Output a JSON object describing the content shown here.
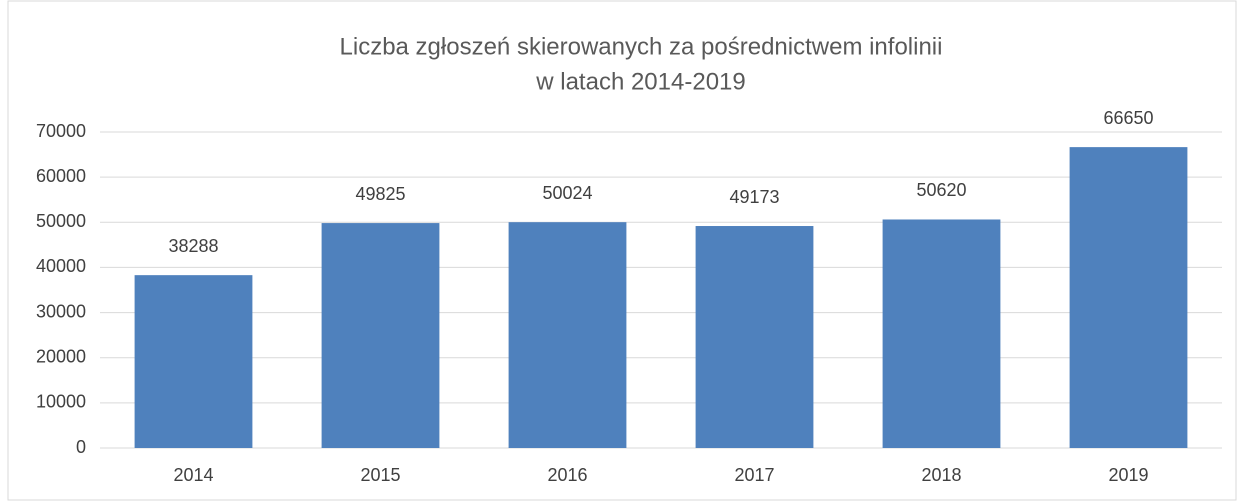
{
  "chart_data": {
    "type": "bar",
    "title": [
      "Liczba zgłoszeń skierowanych za pośrednictwem infolinii",
      "w latach 2014-2019"
    ],
    "categories": [
      "2014",
      "2015",
      "2016",
      "2017",
      "2018",
      "2019"
    ],
    "values": [
      38288,
      49825,
      50024,
      49173,
      50620,
      66650
    ],
    "color": "#4f81bd",
    "ylim": [
      0,
      70000
    ],
    "yticks": [
      0,
      10000,
      20000,
      30000,
      40000,
      50000,
      60000,
      70000
    ],
    "grid": true,
    "data_labels": true
  }
}
